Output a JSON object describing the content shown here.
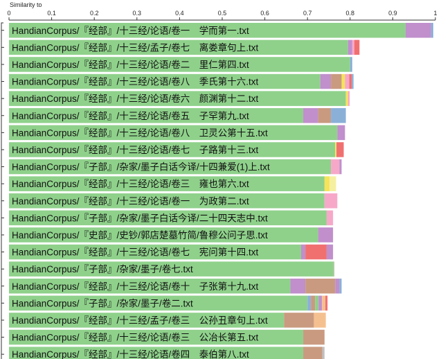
{
  "chart_data": {
    "type": "bar",
    "orientation": "horizontal",
    "stacked": true,
    "xlabel": "Similarity to",
    "xlim": [
      0,
      1
    ],
    "xticks": [
      "0",
      "0.1",
      "0.2",
      "0.3",
      "0.4",
      "0.5",
      "0.6",
      "0.7",
      "0.8",
      "0.9",
      "1"
    ],
    "categories": [
      "HandianCorpus/『经部』/十三经/论语/卷一　学而第一.txt",
      "HandianCorpus/『经部』/十三经/孟子/卷七　离娄章句上.txt",
      "HandianCorpus/『经部』/十三经/论语/卷二　里仁第四.txt",
      "HandianCorpus/『经部』/十三经/论语/卷八　季氏第十六.txt",
      "HandianCorpus/『经部』/十三经/论语/卷六　颜渊第十二.txt",
      "HandianCorpus/『经部』/十三经/论语/卷五　子罕第九.txt",
      "HandianCorpus/『经部』/十三经/论语/卷八　卫灵公第十五.txt",
      "HandianCorpus/『经部』/十三经/论语/卷七　子路第十三.txt",
      "HandianCorpus/『子部』/杂家/墨子白话今译/十四兼爱(1)上.txt",
      "HandianCorpus/『经部』/十三经/论语/卷三　雍也第六.txt",
      "HandianCorpus/『经部』/十三经/论语/卷一　为政第二.txt",
      "HandianCorpus/『子部』/杂家/墨子白话今译/二十四天志中.txt",
      "HandianCorpus/『史部』/史钞/郭店楚墓竹简/鲁穆公问子思.txt",
      "HandianCorpus/『经部』/十三经/论语/卷七　宪问第十四.txt",
      "HandianCorpus/『子部』/杂家/墨子/卷七.txt",
      "HandianCorpus/『经部』/十三经/论语/卷十　子张第十九.txt",
      "HandianCorpus/『子部』/杂家/墨子/卷二.txt",
      "HandianCorpus/『经部』/十三经/孟子/卷三　公孙丑章句上.txt",
      "HandianCorpus/『经部』/十三经/论语/卷三　公冶长第五.txt",
      "HandianCorpus/『经部』/十三经/论语/卷四　泰伯第八.txt"
    ],
    "segments": [
      [
        {
          "v": 0.93,
          "c": "#8fd18b"
        },
        {
          "v": 0.06,
          "c": "#c08fcc"
        },
        {
          "v": 0.005,
          "c": "#8ab0d8"
        }
      ],
      [
        {
          "v": 0.795,
          "c": "#8fd18b"
        },
        {
          "v": 0.01,
          "c": "#c08fcc"
        },
        {
          "v": 0.005,
          "c": "#f7a8c8"
        },
        {
          "v": 0.012,
          "c": "#f07070"
        }
      ],
      [
        {
          "v": 0.8,
          "c": "#8fd18b"
        },
        {
          "v": 0.005,
          "c": "#8ab0d8"
        }
      ],
      [
        {
          "v": 0.73,
          "c": "#8fd18b"
        },
        {
          "v": 0.025,
          "c": "#c08fcc"
        },
        {
          "v": 0.025,
          "c": "#c99a80"
        },
        {
          "v": 0.008,
          "c": "#f5e35a"
        },
        {
          "v": 0.01,
          "c": "#f7a8c8"
        },
        {
          "v": 0.006,
          "c": "#f07070"
        },
        {
          "v": 0.004,
          "c": "#8ab0d8"
        }
      ],
      [
        {
          "v": 0.79,
          "c": "#8fd18b"
        },
        {
          "v": 0.005,
          "c": "#f5e35a"
        },
        {
          "v": 0.004,
          "c": "#f7a8c8"
        }
      ],
      [
        {
          "v": 0.69,
          "c": "#8fd18b"
        },
        {
          "v": 0.035,
          "c": "#c08fcc"
        },
        {
          "v": 0.03,
          "c": "#c99a80"
        },
        {
          "v": 0.035,
          "c": "#8ab0d8"
        }
      ],
      [
        {
          "v": 0.77,
          "c": "#8fd18b"
        },
        {
          "v": 0.018,
          "c": "#c08fcc"
        }
      ],
      [
        {
          "v": 0.765,
          "c": "#8fd18b"
        },
        {
          "v": 0.003,
          "c": "#f5e35a"
        },
        {
          "v": 0.017,
          "c": "#f07070"
        }
      ],
      [
        {
          "v": 0.755,
          "c": "#8fd18b"
        },
        {
          "v": 0.02,
          "c": "#f7a8c8"
        },
        {
          "v": 0.005,
          "c": "#c08fcc"
        }
      ],
      [
        {
          "v": 0.74,
          "c": "#8fd18b"
        },
        {
          "v": 0.012,
          "c": "#f5e35a"
        },
        {
          "v": 0.015,
          "c": "#f5f0a0"
        }
      ],
      [
        {
          "v": 0.74,
          "c": "#8fd18b"
        },
        {
          "v": 0.03,
          "c": "#f7a8c8"
        }
      ],
      [
        {
          "v": 0.745,
          "c": "#8fd18b"
        },
        {
          "v": 0.015,
          "c": "#f7a8c8"
        }
      ],
      [
        {
          "v": 0.725,
          "c": "#8fd18b"
        },
        {
          "v": 0.035,
          "c": "#c08fcc"
        }
      ],
      [
        {
          "v": 0.685,
          "c": "#8fd18b"
        },
        {
          "v": 0.01,
          "c": "#c08fcc"
        },
        {
          "v": 0.05,
          "c": "#f07070"
        },
        {
          "v": 0.015,
          "c": "#c08fcc"
        }
      ],
      [
        {
          "v": 0.76,
          "c": "#8fd18b"
        },
        {
          "v": 0.003,
          "c": "#a8c898"
        }
      ],
      [
        {
          "v": 0.66,
          "c": "#8fd18b"
        },
        {
          "v": 0.035,
          "c": "#c08fcc"
        },
        {
          "v": 0.07,
          "c": "#c99a80"
        },
        {
          "v": 0.01,
          "c": "#c08fcc"
        },
        {
          "v": 0.005,
          "c": "#8ab0d8"
        }
      ],
      [
        {
          "v": 0.7,
          "c": "#8fd18b"
        },
        {
          "v": 0.008,
          "c": "#8ab0d8"
        },
        {
          "v": 0.01,
          "c": "#c99a80"
        },
        {
          "v": 0.008,
          "c": "#8fd18b"
        },
        {
          "v": 0.008,
          "c": "#c08fcc"
        },
        {
          "v": 0.008,
          "c": "#f5c090"
        },
        {
          "v": 0.005,
          "c": "#f07070"
        }
      ],
      [
        {
          "v": 0.645,
          "c": "#8fd18b"
        },
        {
          "v": 0.07,
          "c": "#c99a80"
        },
        {
          "v": 0.028,
          "c": "#f5c090"
        }
      ],
      [
        {
          "v": 0.69,
          "c": "#8fd18b"
        },
        {
          "v": 0.05,
          "c": "#c99a80"
        }
      ],
      [
        {
          "v": 0.69,
          "c": "#8fd18b"
        },
        {
          "v": 0.045,
          "c": "#c99a80"
        },
        {
          "v": 0.005,
          "c": "#c0c0c0"
        }
      ]
    ]
  }
}
